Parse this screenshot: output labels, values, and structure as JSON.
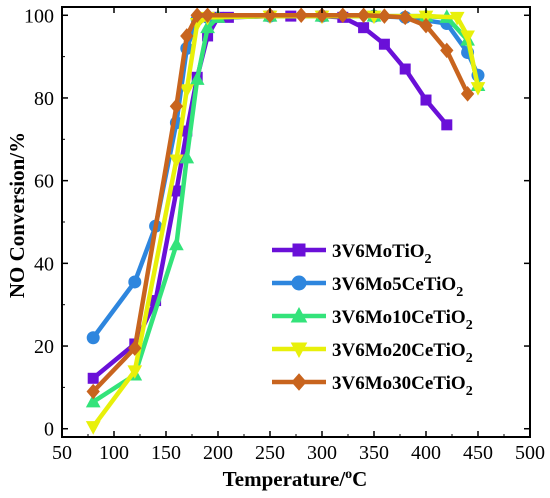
{
  "chart_data": {
    "type": "line",
    "xlabel": "Temperature/°C",
    "xlabel_main": "Temperature/",
    "xlabel_sup": "o",
    "xlabel_unit": "C",
    "ylabel": "NO Conversion/%",
    "xlim": [
      50,
      500
    ],
    "ylim": [
      -2,
      102
    ],
    "x_ticks": [
      50,
      100,
      150,
      200,
      250,
      300,
      350,
      400,
      450,
      500
    ],
    "y_ticks": [
      0,
      20,
      40,
      60,
      80,
      100
    ],
    "grid": false,
    "legend_position": "center-right",
    "series": [
      {
        "name": "3V6MoTiO2",
        "label_main": "3V6MoTiO",
        "label_sub": "2",
        "color": "#6a10d8",
        "marker": "square",
        "points": [
          [
            80,
            12.2
          ],
          [
            120,
            20.5
          ],
          [
            140,
            31
          ],
          [
            160,
            57.5
          ],
          [
            170,
            72
          ],
          [
            180,
            85
          ],
          [
            190,
            95
          ],
          [
            200,
            99.5
          ],
          [
            210,
            99.5
          ],
          [
            250,
            99.8
          ],
          [
            270,
            99.8
          ],
          [
            300,
            99.8
          ],
          [
            320,
            99.5
          ],
          [
            340,
            97
          ],
          [
            360,
            93
          ],
          [
            380,
            87
          ],
          [
            400,
            79.5
          ],
          [
            420,
            73.5
          ]
        ]
      },
      {
        "name": "3V6Mo5CeTiO2",
        "label_main": "3V6Mo5CeTiO",
        "label_sub": "2",
        "color": "#2e86de",
        "marker": "circle",
        "points": [
          [
            80,
            22
          ],
          [
            120,
            35.5
          ],
          [
            140,
            49
          ],
          [
            160,
            74
          ],
          [
            170,
            92
          ],
          [
            180,
            99
          ],
          [
            190,
            99.5
          ],
          [
            250,
            99.8
          ],
          [
            300,
            99.8
          ],
          [
            350,
            99.8
          ],
          [
            380,
            99.5
          ],
          [
            420,
            98
          ],
          [
            440,
            91
          ],
          [
            450,
            85.5
          ]
        ]
      },
      {
        "name": "3V6Mo10CeTiO2",
        "label_main": "3V6Mo10CeTiO",
        "label_sub": "2",
        "color": "#33e37a",
        "marker": "triangle-up",
        "points": [
          [
            80,
            6.5
          ],
          [
            120,
            13
          ],
          [
            160,
            44.5
          ],
          [
            170,
            65.5
          ],
          [
            180,
            84.5
          ],
          [
            190,
            97
          ],
          [
            200,
            99.5
          ],
          [
            250,
            99.8
          ],
          [
            300,
            99.8
          ],
          [
            350,
            99.8
          ],
          [
            400,
            99.8
          ],
          [
            420,
            99.5
          ],
          [
            440,
            94
          ],
          [
            450,
            83
          ]
        ]
      },
      {
        "name": "3V6Mo20CeTiO2",
        "label_main": "3V6Mo20CeTiO",
        "label_sub": "2",
        "color": "#e8f00a",
        "marker": "triangle-down",
        "points": [
          [
            80,
            0.5
          ],
          [
            120,
            14
          ],
          [
            160,
            65
          ],
          [
            170,
            82
          ],
          [
            180,
            98
          ],
          [
            190,
            99.5
          ],
          [
            250,
            99.8
          ],
          [
            300,
            99.8
          ],
          [
            350,
            99.8
          ],
          [
            400,
            99.8
          ],
          [
            430,
            99.5
          ],
          [
            440,
            95
          ],
          [
            450,
            82.5
          ]
        ]
      },
      {
        "name": "3V6Mo30CeTiO2",
        "label_main": "3V6Mo30CeTiO",
        "label_sub": "2",
        "color": "#c8641e",
        "marker": "diamond",
        "points": [
          [
            80,
            9
          ],
          [
            120,
            19.5
          ],
          [
            160,
            78
          ],
          [
            170,
            95
          ],
          [
            180,
            100
          ],
          [
            190,
            100
          ],
          [
            250,
            100
          ],
          [
            280,
            100
          ],
          [
            300,
            100
          ],
          [
            320,
            100
          ],
          [
            340,
            100
          ],
          [
            360,
            99.8
          ],
          [
            380,
            99.5
          ],
          [
            400,
            97.5
          ],
          [
            420,
            91.5
          ],
          [
            440,
            81
          ]
        ]
      }
    ]
  }
}
